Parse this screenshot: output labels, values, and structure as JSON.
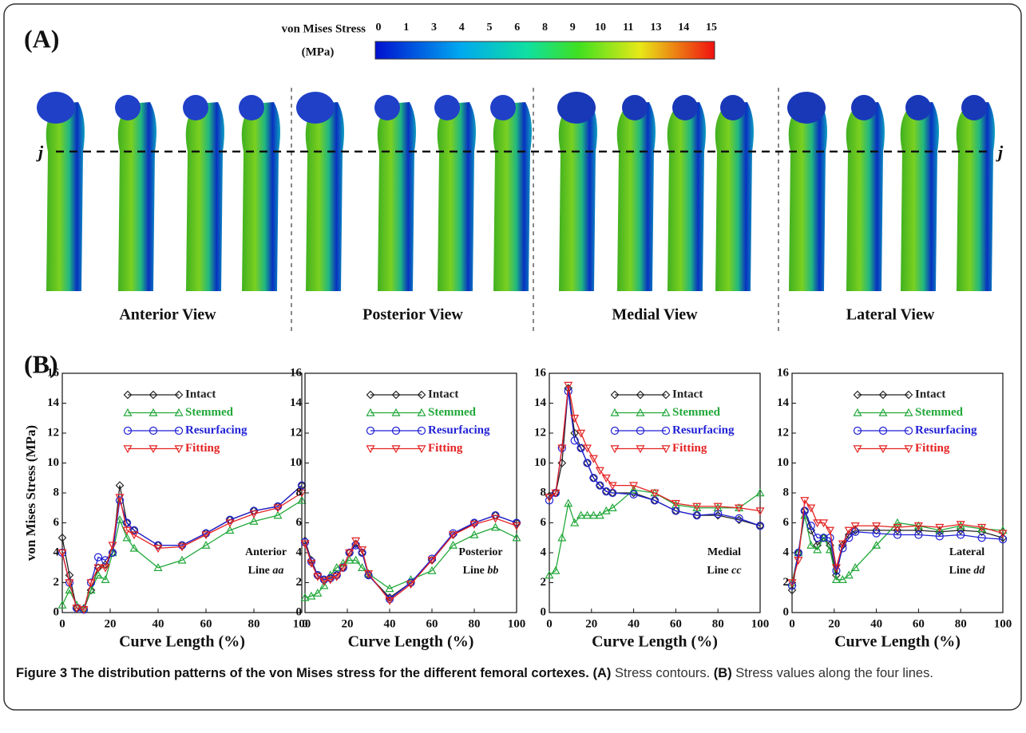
{
  "panel_a": {
    "label": "(A)",
    "colorbar": {
      "title": "von Mises Stress",
      "unit": "(MPa)",
      "ticks": [
        0,
        1,
        3,
        4,
        5,
        6,
        8,
        9,
        10,
        11,
        13,
        14,
        15
      ]
    },
    "line_label": "j",
    "views": [
      "Anterior View",
      "Posterior View",
      "Medial View",
      "Lateral View"
    ]
  },
  "panel_b": {
    "label": "(B)"
  },
  "chart_data": [
    {
      "type": "line",
      "ylabel": "von Mises Stress (MPa)",
      "xlabel": "Curve Length (%)",
      "annotation": {
        "name": "Anterior",
        "line": "Line",
        "id": "aa"
      },
      "x": [
        0,
        3,
        6,
        9,
        12,
        15,
        18,
        21,
        24,
        27,
        30,
        40,
        50,
        60,
        70,
        80,
        90,
        100
      ],
      "series": [
        {
          "name": "Intact",
          "color": "#222222",
          "marker": "diamond",
          "values": [
            5,
            2.5,
            0.3,
            0.2,
            1.5,
            3,
            3.2,
            4,
            8.5,
            6,
            5.5,
            4.5,
            4.5,
            5.3,
            6.2,
            6.8,
            7.1,
            8.5
          ]
        },
        {
          "name": "Stemmed",
          "color": "#22a83a",
          "marker": "triangle",
          "values": [
            0.5,
            1.5,
            0.5,
            0.3,
            1.5,
            2.5,
            2.2,
            4,
            6.2,
            5,
            4.3,
            3,
            3.5,
            4.5,
            5.5,
            6.1,
            6.5,
            7.5
          ]
        },
        {
          "name": "Resurfacing",
          "color": "#1f1fd6",
          "marker": "circle",
          "values": [
            4,
            2,
            0.3,
            0.2,
            2,
            3.7,
            3.5,
            4,
            7.5,
            6,
            5.5,
            4.5,
            4.5,
            5.3,
            6.2,
            6.8,
            7.1,
            8.5
          ]
        },
        {
          "name": "Fitting",
          "color": "#e52222",
          "marker": "triangle-down",
          "values": [
            4,
            2,
            0.3,
            0.2,
            2,
            3,
            3,
            4.5,
            7.7,
            5.5,
            5.2,
            4.3,
            4.4,
            5.2,
            6,
            6.6,
            7,
            8
          ]
        }
      ],
      "xlim": [
        0,
        100
      ],
      "xticks": [
        0,
        20,
        40,
        60,
        80,
        100
      ],
      "ylim": [
        0,
        16
      ],
      "yticks": [
        0,
        2,
        4,
        6,
        8,
        10,
        12,
        14,
        16
      ]
    },
    {
      "type": "line",
      "xlabel": "Curve Length (%)",
      "annotation": {
        "name": "Posterior",
        "line": "Line",
        "id": "bb"
      },
      "x": [
        0,
        3,
        6,
        9,
        12,
        15,
        18,
        21,
        24,
        27,
        30,
        40,
        50,
        60,
        70,
        80,
        90,
        100
      ],
      "series": [
        {
          "name": "Intact",
          "color": "#222222",
          "marker": "diamond",
          "values": [
            4.8,
            3.5,
            2.5,
            2.2,
            2.3,
            2.5,
            3,
            4,
            4.6,
            4,
            2.5,
            1,
            2,
            3.5,
            5.2,
            6,
            6.5,
            6
          ]
        },
        {
          "name": "Stemmed",
          "color": "#22a83a",
          "marker": "triangle",
          "values": [
            1,
            1.1,
            1.3,
            1.8,
            2.5,
            3,
            3.3,
            3.5,
            3.5,
            3,
            2.6,
            1.6,
            2.2,
            2.8,
            4.5,
            5.2,
            5.7,
            5
          ]
        },
        {
          "name": "Resurfacing",
          "color": "#1f1fd6",
          "marker": "circle",
          "values": [
            4.7,
            3.4,
            2.5,
            2.2,
            2.3,
            2.5,
            3,
            4,
            4.5,
            4,
            2.5,
            0.9,
            2,
            3.6,
            5.3,
            6,
            6.5,
            6
          ]
        },
        {
          "name": "Fitting",
          "color": "#e52222",
          "marker": "triangle-down",
          "values": [
            4.6,
            3.3,
            2.4,
            2.1,
            2.2,
            2.4,
            3,
            4,
            4.8,
            4.2,
            2.6,
            0.8,
            1.9,
            3.5,
            5.2,
            5.9,
            6.3,
            5.8
          ]
        }
      ],
      "xlim": [
        0,
        100
      ],
      "xticks": [
        0,
        20,
        40,
        60,
        80,
        100
      ],
      "ylim": [
        0,
        16
      ],
      "yticks": [
        0,
        2,
        4,
        6,
        8,
        10,
        12,
        14,
        16
      ]
    },
    {
      "type": "line",
      "xlabel": "Curve Length (%)",
      "annotation": {
        "name": "Medial",
        "line": "Line",
        "id": "cc"
      },
      "x": [
        0,
        3,
        6,
        9,
        12,
        15,
        18,
        21,
        24,
        27,
        30,
        40,
        50,
        60,
        70,
        80,
        90,
        100
      ],
      "series": [
        {
          "name": "Intact",
          "color": "#222222",
          "marker": "diamond",
          "values": [
            7.8,
            8,
            10,
            15,
            12,
            11,
            10,
            9,
            8.5,
            8.1,
            8,
            8,
            7.5,
            6.8,
            6.5,
            6.5,
            6.2,
            5.8
          ]
        },
        {
          "name": "Stemmed",
          "color": "#22a83a",
          "marker": "triangle",
          "values": [
            2.5,
            2.8,
            5,
            7.3,
            6,
            6.5,
            6.5,
            6.5,
            6.5,
            6.8,
            7,
            8.2,
            8,
            7.2,
            7,
            7,
            7,
            8
          ]
        },
        {
          "name": "Resurfacing",
          "color": "#1f1fd6",
          "marker": "circle",
          "values": [
            7.5,
            8,
            11,
            14.8,
            11.5,
            11,
            10,
            9,
            8.5,
            8.1,
            8,
            7.9,
            7.5,
            6.8,
            6.5,
            6.6,
            6.3,
            5.8
          ]
        },
        {
          "name": "Fitting",
          "color": "#e52222",
          "marker": "triangle-down",
          "values": [
            7.7,
            8,
            11,
            15.2,
            13,
            12,
            11,
            10.3,
            9.5,
            9,
            8.5,
            8.5,
            8,
            7.3,
            7.1,
            7.1,
            7,
            6.8
          ]
        }
      ],
      "xlim": [
        0,
        100
      ],
      "xticks": [
        0,
        20,
        40,
        60,
        80,
        100
      ],
      "ylim": [
        0,
        16
      ],
      "yticks": [
        0,
        2,
        4,
        6,
        8,
        10,
        12,
        14,
        16
      ]
    },
    {
      "type": "line",
      "xlabel": "Curve Length (%)",
      "annotation": {
        "name": "Lateral",
        "line": "Line",
        "id": "dd"
      },
      "x": [
        0,
        3,
        6,
        9,
        12,
        15,
        18,
        21,
        24,
        27,
        30,
        40,
        50,
        60,
        70,
        80,
        90,
        100
      ],
      "series": [
        {
          "name": "Intact",
          "color": "#222222",
          "marker": "diamond",
          "values": [
            1.5,
            4,
            6.8,
            5.5,
            4.5,
            5,
            4.5,
            2.5,
            4.5,
            5.2,
            5.5,
            5.5,
            5.5,
            5.5,
            5.4,
            5.5,
            5.4,
            5
          ]
        },
        {
          "name": "Stemmed",
          "color": "#22a83a",
          "marker": "triangle",
          "values": [
            2,
            4,
            6.5,
            4.5,
            4.2,
            5,
            4.2,
            2.2,
            2.2,
            2.5,
            3,
            4.5,
            6,
            5.8,
            5.5,
            5.8,
            5.6,
            5.5
          ]
        },
        {
          "name": "Resurfacing",
          "color": "#1f1fd6",
          "marker": "circle",
          "values": [
            1.8,
            4,
            6.8,
            5.8,
            5,
            5,
            5,
            2.8,
            4.3,
            5,
            5.4,
            5.3,
            5.2,
            5.2,
            5.1,
            5.2,
            5,
            4.9
          ]
        },
        {
          "name": "Fitting",
          "color": "#e52222",
          "marker": "triangle-down",
          "values": [
            2,
            3.5,
            7.5,
            7,
            6,
            6,
            5.5,
            3,
            4.6,
            5.5,
            5.8,
            5.8,
            5.7,
            5.8,
            5.7,
            5.9,
            5.7,
            5.3
          ]
        }
      ],
      "xlim": [
        0,
        100
      ],
      "xticks": [
        0,
        20,
        40,
        60,
        80,
        100
      ],
      "ylim": [
        0,
        16
      ],
      "yticks": [
        0,
        2,
        4,
        6,
        8,
        10,
        12,
        14,
        16
      ]
    }
  ],
  "caption": {
    "title": "Figure 3 The distribution patterns of the von Mises stress for the different femoral cortexes.",
    "a_label": "(A)",
    "a_text": "Stress contours.",
    "b_label": "(B)",
    "b_text": "Stress values along the four lines."
  }
}
